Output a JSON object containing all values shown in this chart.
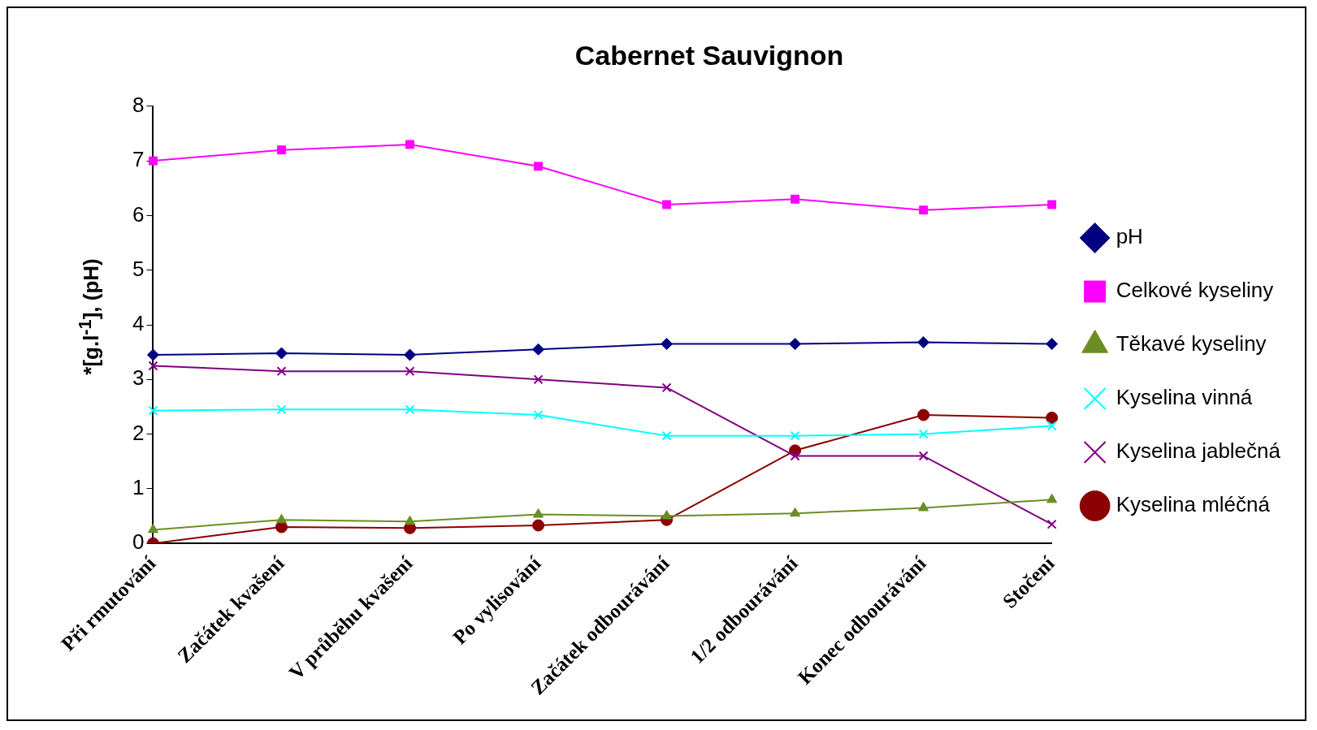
{
  "chart_data": {
    "type": "line",
    "title": "Cabernet Sauvignon",
    "ylabel": "*[g.l$^{-1}$], (pH)",
    "categories": [
      "Při rmutování",
      "Začátek kvašení",
      "V průběhu kvašení",
      "Po vylisování",
      "Začátek odbourávání",
      "1/2 odbourávání",
      "Konec odbourávání",
      "Stočení"
    ],
    "series": [
      {
        "name": "pH",
        "color": "#000080",
        "marker": "diamond",
        "values": [
          3.45,
          3.48,
          3.45,
          3.55,
          3.65,
          3.65,
          3.68,
          3.65
        ]
      },
      {
        "name": "Celkové kyseliny",
        "color": "#ff00ff",
        "marker": "square",
        "values": [
          7.0,
          7.2,
          7.3,
          6.9,
          6.2,
          6.3,
          6.1,
          6.2
        ]
      },
      {
        "name": "Těkavé kyseliny",
        "color": "#6b8e23",
        "marker": "triangle",
        "values": [
          0.25,
          0.43,
          0.4,
          0.53,
          0.5,
          0.55,
          0.65,
          0.8
        ]
      },
      {
        "name": "Kyselina vinná",
        "color": "#00ffff",
        "marker": "cross",
        "values": [
          2.43,
          2.45,
          2.45,
          2.35,
          1.97,
          1.97,
          2.0,
          2.15
        ]
      },
      {
        "name": "Kyselina jablečná",
        "color": "#800080",
        "marker": "cross",
        "values": [
          3.25,
          3.15,
          3.15,
          3.0,
          2.85,
          1.6,
          1.6,
          0.35
        ]
      },
      {
        "name": "Kyselina mléčná",
        "color": "#8b0000",
        "marker": "circle",
        "values": [
          0.0,
          0.3,
          0.28,
          0.33,
          0.43,
          1.7,
          2.35,
          2.3
        ]
      }
    ],
    "ylim": [
      0,
      8
    ],
    "yticks": [
      0,
      1,
      2,
      3,
      4,
      5,
      6,
      7,
      8
    ],
    "grid": false,
    "legend": "right",
    "line_style": "solid"
  }
}
